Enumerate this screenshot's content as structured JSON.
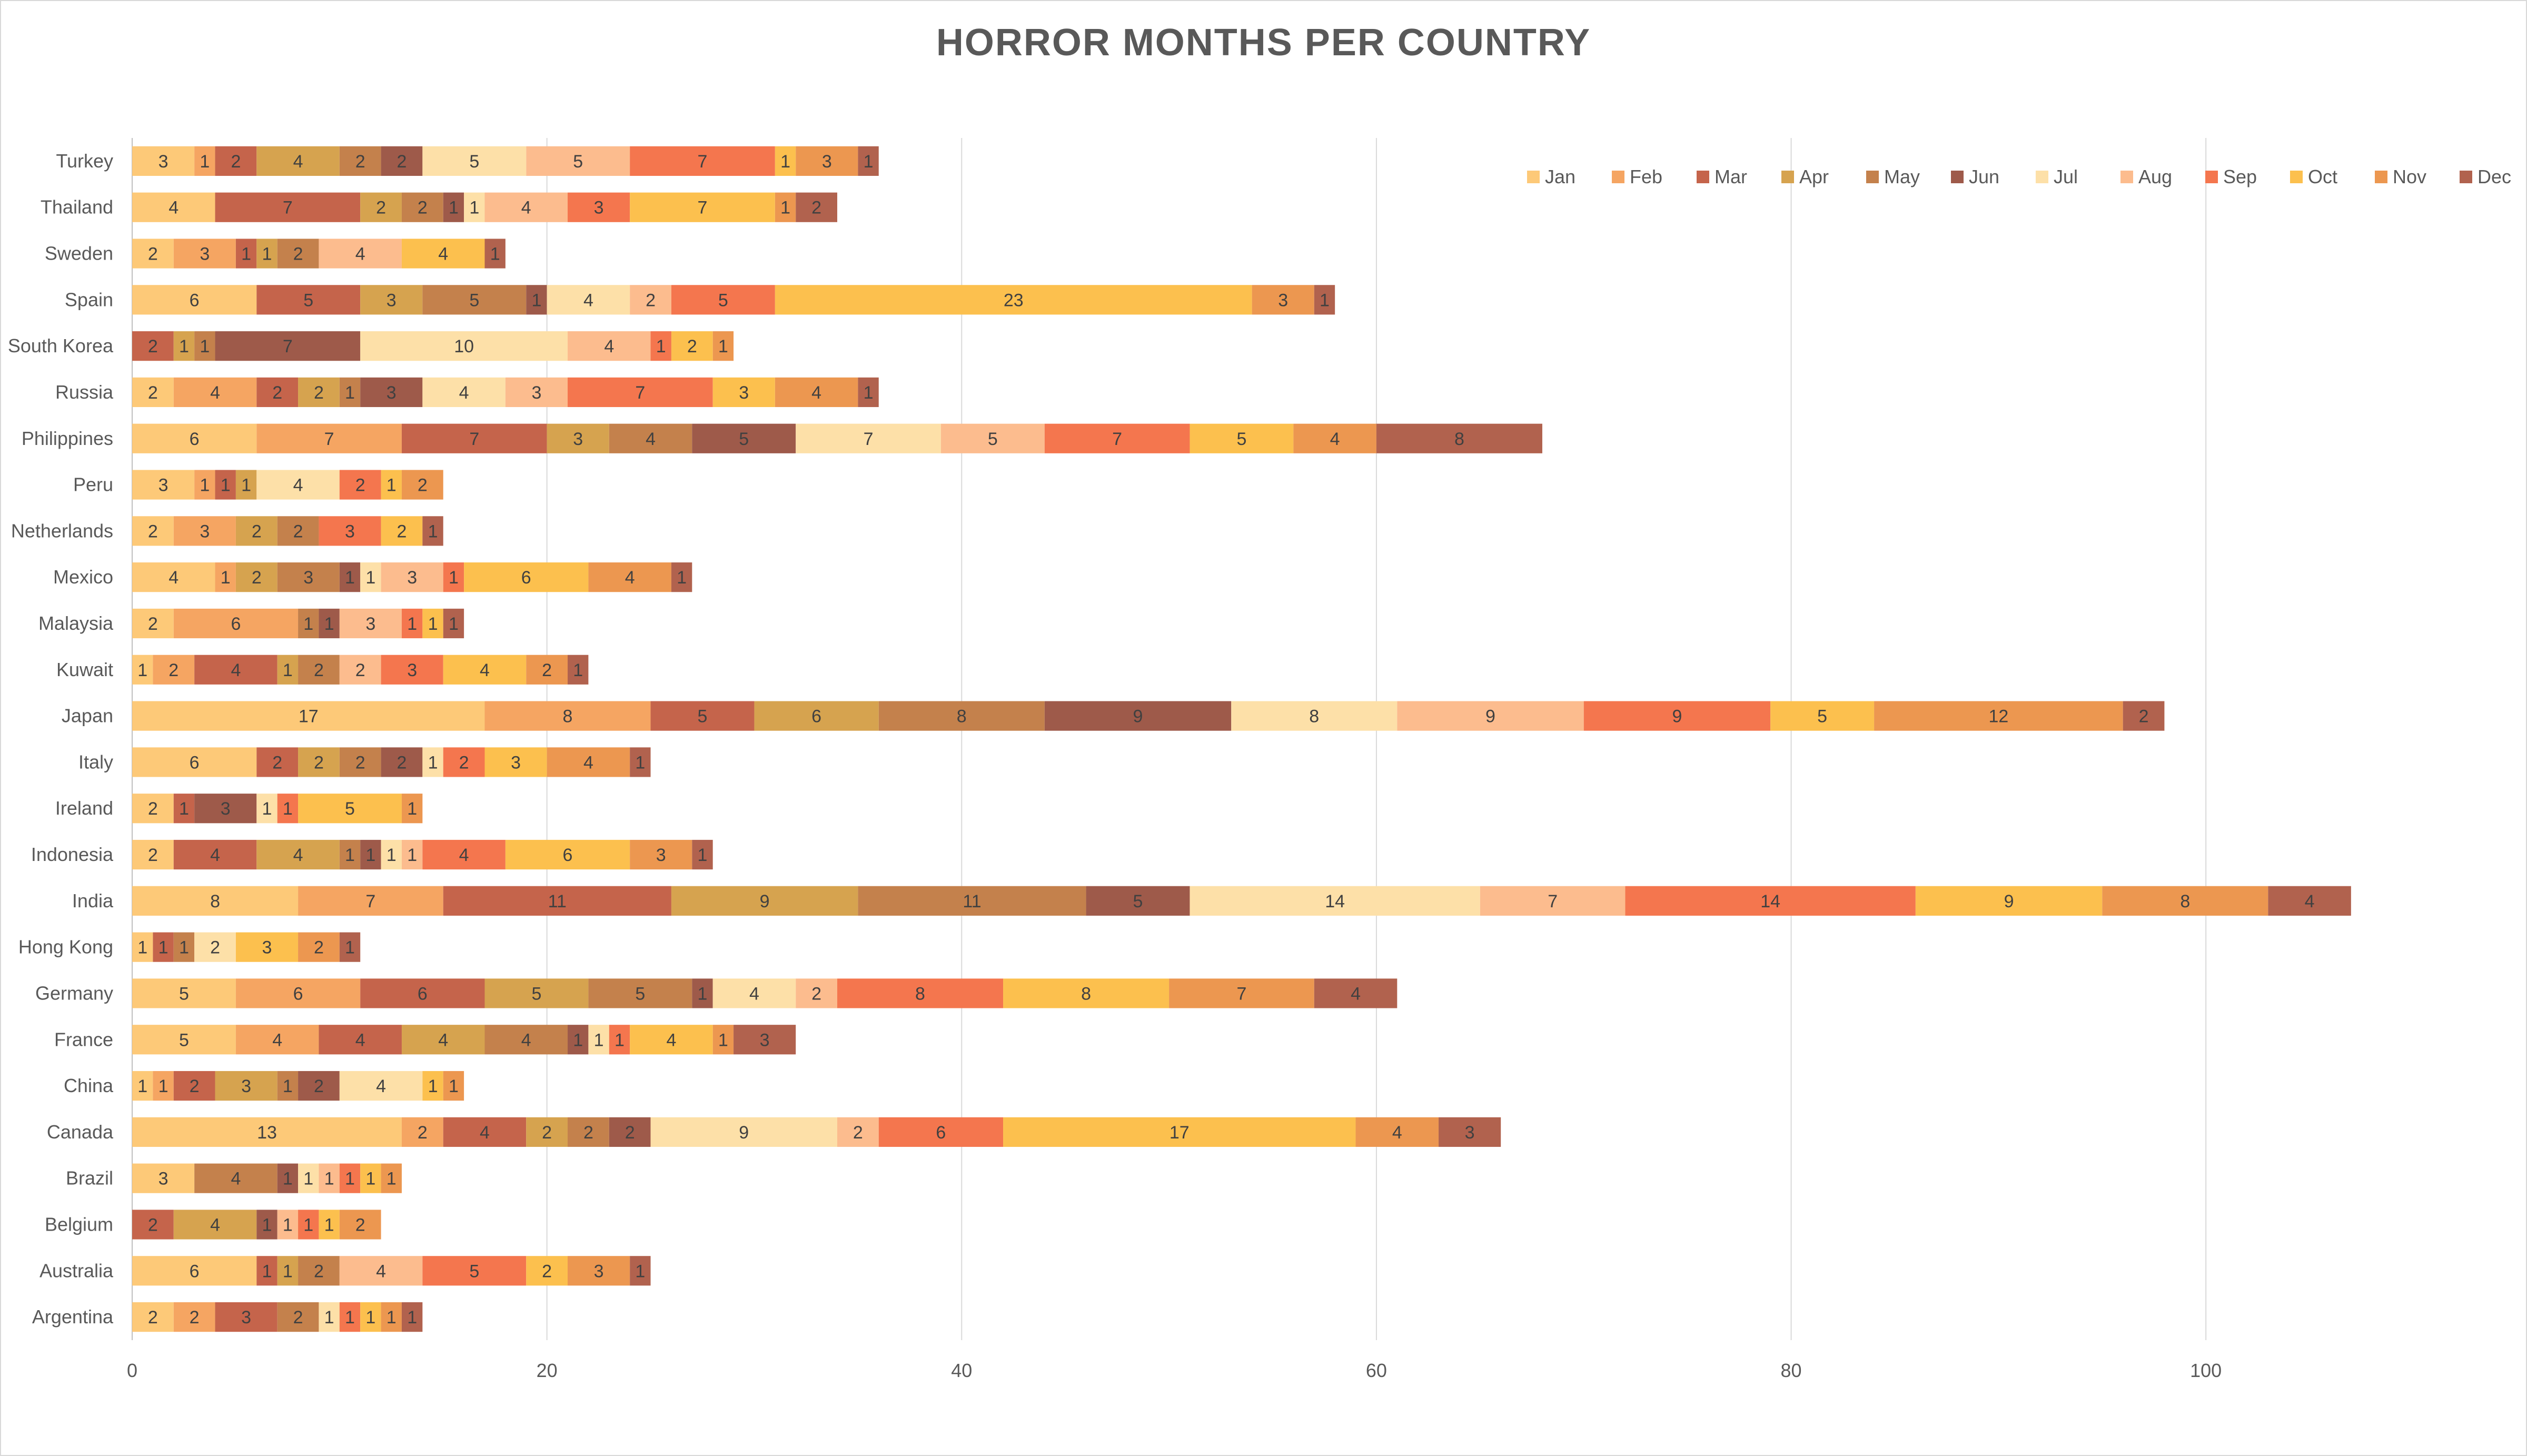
{
  "chart_data": {
    "type": "bar",
    "orientation": "horizontal",
    "stacked": true,
    "title": "HORROR MONTHS PER COUNTRY",
    "xlabel": "",
    "ylabel": "",
    "xlim": [
      0,
      110
    ],
    "x_ticks": [
      0,
      20,
      40,
      60,
      80,
      100
    ],
    "grid": "vertical",
    "legend_position": "top-right",
    "categories": [
      "Argentina",
      "Australia",
      "Belgium",
      "Brazil",
      "Canada",
      "China",
      "France",
      "Germany",
      "Hong Kong",
      "India",
      "Indonesia",
      "Ireland",
      "Italy",
      "Japan",
      "Kuwait",
      "Malaysia",
      "Mexico",
      "Netherlands",
      "Peru",
      "Philippines",
      "Russia",
      "South Korea",
      "Spain",
      "Sweden",
      "Thailand",
      "Turkey"
    ],
    "series": [
      {
        "name": "Jan",
        "color": "#fdc978",
        "values": [
          2,
          6,
          0,
          3,
          13,
          1,
          5,
          5,
          1,
          8,
          2,
          2,
          6,
          17,
          1,
          2,
          4,
          2,
          3,
          6,
          2,
          0,
          6,
          2,
          4,
          3
        ]
      },
      {
        "name": "Feb",
        "color": "#f5a562",
        "values": [
          2,
          0,
          0,
          0,
          2,
          1,
          4,
          6,
          0,
          7,
          0,
          0,
          0,
          8,
          2,
          6,
          1,
          3,
          1,
          7,
          4,
          0,
          0,
          3,
          0,
          1
        ]
      },
      {
        "name": "Mar",
        "color": "#c5644b",
        "values": [
          3,
          1,
          2,
          0,
          4,
          2,
          4,
          6,
          1,
          11,
          4,
          1,
          2,
          5,
          4,
          0,
          0,
          0,
          1,
          7,
          2,
          2,
          5,
          1,
          7,
          2
        ]
      },
      {
        "name": "Apr",
        "color": "#d6a34f",
        "values": [
          0,
          1,
          4,
          0,
          2,
          3,
          4,
          5,
          0,
          9,
          4,
          0,
          2,
          6,
          1,
          0,
          2,
          2,
          1,
          3,
          2,
          1,
          3,
          1,
          2,
          4
        ]
      },
      {
        "name": "May",
        "color": "#c4814c",
        "values": [
          2,
          2,
          0,
          4,
          2,
          1,
          4,
          5,
          1,
          11,
          1,
          0,
          2,
          8,
          2,
          1,
          3,
          2,
          0,
          4,
          1,
          1,
          5,
          2,
          2,
          2
        ]
      },
      {
        "name": "Jun",
        "color": "#9e5a4a",
        "values": [
          0,
          0,
          1,
          1,
          2,
          2,
          1,
          1,
          0,
          5,
          1,
          3,
          2,
          9,
          0,
          1,
          1,
          0,
          0,
          5,
          3,
          7,
          1,
          0,
          1,
          2
        ]
      },
      {
        "name": "Jul",
        "color": "#fde0a8",
        "values": [
          1,
          0,
          0,
          1,
          9,
          4,
          1,
          4,
          2,
          14,
          1,
          1,
          1,
          8,
          0,
          0,
          1,
          0,
          4,
          7,
          4,
          10,
          4,
          0,
          1,
          5
        ]
      },
      {
        "name": "Aug",
        "color": "#fcbc8e",
        "values": [
          0,
          4,
          1,
          1,
          2,
          0,
          0,
          2,
          0,
          7,
          1,
          0,
          0,
          9,
          2,
          3,
          3,
          0,
          0,
          5,
          3,
          4,
          2,
          4,
          4,
          5
        ]
      },
      {
        "name": "Sep",
        "color": "#f4764e",
        "values": [
          1,
          5,
          1,
          1,
          6,
          0,
          1,
          8,
          0,
          14,
          4,
          1,
          2,
          9,
          3,
          1,
          1,
          3,
          2,
          7,
          7,
          1,
          5,
          0,
          3,
          7
        ]
      },
      {
        "name": "Oct",
        "color": "#fcc04e",
        "values": [
          1,
          2,
          1,
          1,
          17,
          1,
          4,
          8,
          3,
          9,
          6,
          5,
          3,
          5,
          4,
          1,
          6,
          2,
          1,
          5,
          3,
          2,
          23,
          4,
          7,
          1
        ]
      },
      {
        "name": "Nov",
        "color": "#ec9750",
        "values": [
          1,
          3,
          2,
          1,
          4,
          1,
          1,
          7,
          2,
          8,
          3,
          1,
          4,
          12,
          2,
          0,
          4,
          0,
          2,
          4,
          4,
          1,
          3,
          0,
          1,
          3
        ]
      },
      {
        "name": "Dec",
        "color": "#b1624e",
        "values": [
          1,
          1,
          0,
          0,
          3,
          0,
          3,
          4,
          1,
          4,
          1,
          0,
          1,
          2,
          1,
          1,
          1,
          1,
          0,
          8,
          1,
          0,
          1,
          1,
          2,
          1
        ]
      }
    ]
  }
}
